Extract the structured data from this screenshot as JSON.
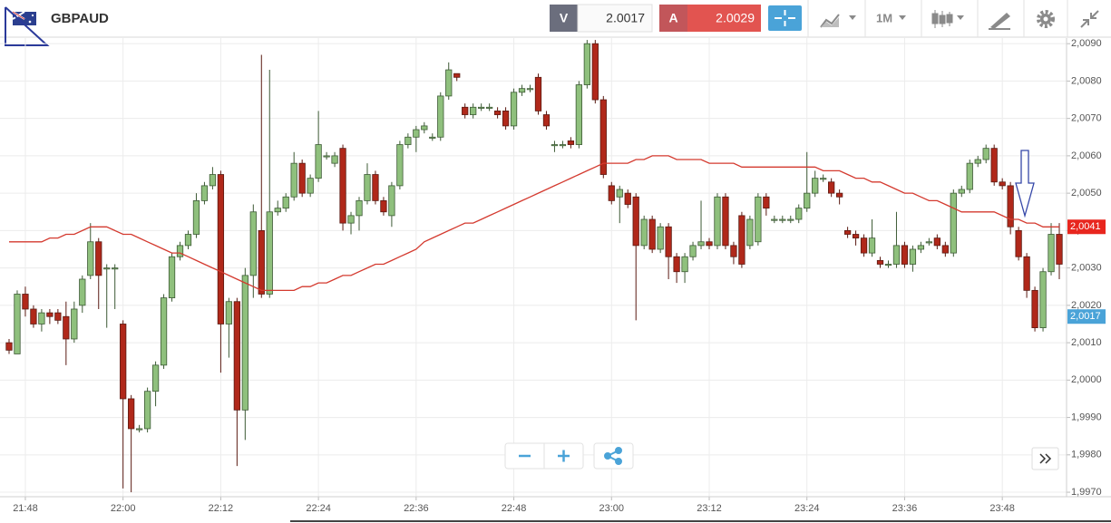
{
  "toolbar": {
    "symbol": "GBPAUD",
    "sell_label": "V",
    "sell_price": "2.0017",
    "buy_label": "A",
    "buy_price": "2.0029",
    "timeframe": "1M"
  },
  "chart_data": {
    "type": "candlestick",
    "up_color": "#8fc07d",
    "down_color": "#b0281a",
    "grid": true,
    "categories": [
      null,
      null,
      "21:48",
      null,
      null,
      null,
      null,
      null,
      null,
      null,
      null,
      null,
      null,
      null,
      "22:00",
      null,
      null,
      null,
      null,
      null,
      null,
      null,
      null,
      null,
      null,
      null,
      "22:12",
      null,
      null,
      null,
      null,
      null,
      null,
      null,
      null,
      null,
      null,
      null,
      "22:24",
      null,
      null,
      null,
      null,
      null,
      null,
      null,
      null,
      null,
      null,
      null,
      "22:36",
      null,
      null,
      null,
      null,
      null,
      null,
      null,
      null,
      null,
      null,
      null,
      "22:48",
      null,
      null,
      null,
      null,
      null,
      null,
      null,
      null,
      null,
      null,
      null,
      "23:00",
      null,
      null,
      null,
      null,
      null,
      null,
      null,
      null,
      null,
      null,
      null,
      "23:12",
      null,
      null,
      null,
      null,
      null,
      null,
      null,
      null,
      null,
      null,
      null,
      "23:24",
      null,
      null,
      null,
      null,
      null,
      null,
      null,
      null,
      null,
      null,
      null,
      "23:36",
      null,
      null,
      null,
      null,
      null,
      null,
      null,
      null,
      null,
      null,
      null,
      "23:48",
      null,
      null,
      null,
      null,
      null,
      null,
      null
    ],
    "open": [
      2.001,
      2.0007,
      2.0023,
      2.0019,
      2.0015,
      2.0018,
      2.0018,
      2.0017,
      2.0011,
      2.002,
      2.0028,
      2.0037,
      2.003,
      2.003,
      2.0015,
      1.9995,
      1.9987,
      1.9987,
      1.9997,
      2.0004,
      2.0022,
      2.0033,
      2.0036,
      2.0039,
      2.0048,
      2.0052,
      2.0055,
      2.0015,
      2.0021,
      1.9992,
      2.0028,
      2.004,
      2.0023,
      2.0045,
      2.0046,
      2.0049,
      2.0058,
      2.005,
      2.0054,
      2.006,
      2.0058,
      2.0062,
      2.0042,
      2.0044,
      2.0048,
      2.0055,
      2.0048,
      2.0044,
      2.0052,
      2.0063,
      2.0065,
      2.0067,
      2.0065,
      2.0065,
      2.0076,
      2.0082,
      2.0073,
      2.0071,
      2.0073,
      2.0073,
      2.0072,
      2.0072,
      2.0068,
      2.0077,
      2.0078,
      2.0081,
      2.0071,
      2.0063,
      2.0063,
      2.0064,
      2.0063,
      2.0079,
      2.009,
      2.0075,
      2.0052,
      2.0049,
      2.005,
      2.0049,
      2.0036,
      2.0043,
      2.0035,
      2.0041,
      2.0033,
      2.0029,
      2.0033,
      2.0036,
      2.0037,
      2.0036,
      2.0049,
      2.0036,
      2.0044,
      2.0036,
      2.0037,
      2.0049,
      2.0043,
      2.0043,
      2.0043,
      2.0043,
      2.0046,
      2.005,
      2.0054,
      2.0053,
      2.005,
      2.004,
      2.0039,
      2.0038,
      2.0034,
      2.0032,
      2.0031,
      2.0031,
      2.0036,
      2.0031,
      2.0035,
      2.0037,
      2.0038,
      2.0036,
      2.0034,
      2.005,
      2.0051,
      2.0058,
      2.0059,
      2.0062,
      2.0053,
      2.0052,
      2.004,
      2.0033,
      2.0024,
      2.0014,
      2.0029,
      2.0039
    ],
    "high": [
      2.0011,
      2.0024,
      2.0025,
      2.002,
      2.0019,
      2.0019,
      2.0019,
      2.0021,
      2.0021,
      2.0028,
      2.0042,
      2.0038,
      2.0031,
      2.0031,
      2.0016,
      1.9996,
      1.9988,
      1.9998,
      2.0005,
      2.0023,
      2.0034,
      2.0037,
      2.004,
      2.005,
      2.0053,
      2.0057,
      2.0056,
      2.0022,
      2.0022,
      2.003,
      2.0047,
      2.0087,
      2.0083,
      2.0048,
      2.005,
      2.0061,
      2.0059,
      2.0055,
      2.0072,
      2.0061,
      2.0061,
      2.0063,
      2.0045,
      2.0049,
      2.0058,
      2.0056,
      2.0049,
      2.0053,
      2.0064,
      2.0066,
      2.0068,
      2.0069,
      2.0066,
      2.0077,
      2.0085,
      2.0082,
      2.0074,
      2.0074,
      2.0074,
      2.0074,
      2.0073,
      2.0073,
      2.0078,
      2.0079,
      2.0079,
      2.0082,
      2.0072,
      2.0064,
      2.0064,
      2.0065,
      2.008,
      2.0091,
      2.0091,
      2.0076,
      2.0053,
      2.0052,
      2.0051,
      2.005,
      2.0044,
      2.0044,
      2.0042,
      2.0042,
      2.0034,
      2.0034,
      2.0037,
      2.0048,
      2.0038,
      2.005,
      2.005,
      2.0037,
      2.0045,
      2.0044,
      2.005,
      2.005,
      2.0044,
      2.0044,
      2.0044,
      2.0047,
      2.0061,
      2.0056,
      2.0055,
      2.0054,
      2.0051,
      2.0041,
      2.004,
      2.0039,
      2.0043,
      2.0033,
      2.0032,
      2.0045,
      2.0037,
      2.0036,
      2.0037,
      2.0038,
      2.0039,
      2.0037,
      2.0051,
      2.0052,
      2.0059,
      2.006,
      2.0063,
      2.0063,
      2.0054,
      2.0053,
      2.0041,
      2.0034,
      2.0025,
      2.003,
      2.0042,
      2.0042
    ],
    "low": [
      2.0007,
      2.0007,
      2.0017,
      2.0014,
      2.0013,
      2.0015,
      2.0015,
      2.0004,
      2.001,
      2.0018,
      2.0027,
      2.0019,
      2.0014,
      2.0019,
      1.9971,
      1.997,
      1.9986,
      1.9986,
      1.9993,
      2.0003,
      2.0021,
      2.0032,
      2.0035,
      2.0038,
      2.0047,
      2.0051,
      2.0002,
      2.0006,
      1.9977,
      1.9984,
      2.0022,
      2.0022,
      2.0022,
      2.0044,
      2.0045,
      2.0048,
      2.0049,
      2.0049,
      2.0053,
      2.0059,
      2.0057,
      2.004,
      2.0039,
      2.004,
      2.0047,
      2.0047,
      2.0044,
      2.0041,
      2.0051,
      2.0062,
      2.0061,
      2.0066,
      2.0064,
      2.0064,
      2.0075,
      2.008,
      2.007,
      2.007,
      2.0072,
      2.0072,
      2.007,
      2.0067,
      2.0067,
      2.0076,
      2.0077,
      2.0071,
      2.0067,
      2.0061,
      2.0062,
      2.0062,
      2.0062,
      2.0078,
      2.0074,
      2.0054,
      2.0047,
      2.0042,
      2.0046,
      2.0016,
      2.0035,
      2.0034,
      2.0034,
      2.0027,
      2.0026,
      2.0026,
      2.0032,
      2.0035,
      2.0035,
      2.0035,
      2.0035,
      2.0031,
      2.003,
      2.0035,
      2.0036,
      2.0044,
      2.0042,
      2.0042,
      2.0042,
      2.0042,
      2.0045,
      2.0049,
      2.0053,
      2.0049,
      2.0047,
      2.0038,
      2.0036,
      2.0033,
      2.0033,
      2.003,
      2.003,
      2.003,
      2.003,
      2.0029,
      2.0034,
      2.0036,
      2.0035,
      2.0033,
      2.0033,
      2.0049,
      2.005,
      2.0057,
      2.0058,
      2.0052,
      2.0051,
      2.0039,
      2.0032,
      2.0022,
      2.0013,
      2.0013,
      2.0028,
      2.0027
    ],
    "close": [
      2.0008,
      2.0023,
      2.0019,
      2.0015,
      2.0018,
      2.0017,
      2.0016,
      2.0011,
      2.0019,
      2.0027,
      2.0037,
      2.0028,
      2.003,
      2.003,
      1.9995,
      1.9987,
      1.9987,
      1.9997,
      2.0004,
      2.0022,
      2.0033,
      2.0036,
      2.0039,
      2.0048,
      2.0052,
      2.0055,
      2.0015,
      2.0021,
      1.9992,
      2.0028,
      2.0045,
      2.0023,
      2.0045,
      2.0046,
      2.0049,
      2.0058,
      2.005,
      2.0054,
      2.0063,
      2.006,
      2.006,
      2.0042,
      2.0044,
      2.0048,
      2.0055,
      2.0048,
      2.0045,
      2.0052,
      2.0063,
      2.0065,
      2.0067,
      2.0068,
      2.0065,
      2.0076,
      2.0083,
      2.0081,
      2.0071,
      2.0073,
      2.0073,
      2.0073,
      2.0071,
      2.0068,
      2.0077,
      2.0078,
      2.0078,
      2.0072,
      2.0068,
      2.0063,
      2.0063,
      2.0063,
      2.0079,
      2.009,
      2.0075,
      2.0055,
      2.0048,
      2.0051,
      2.0047,
      2.0036,
      2.0043,
      2.0035,
      2.0041,
      2.0033,
      2.0029,
      2.0033,
      2.0036,
      2.0037,
      2.0036,
      2.0049,
      2.0036,
      2.0033,
      2.0031,
      2.0043,
      2.0049,
      2.0046,
      2.0043,
      2.0043,
      2.0043,
      2.0046,
      2.005,
      2.0054,
      2.0054,
      2.005,
      2.0049,
      2.0039,
      2.0038,
      2.0034,
      2.0038,
      2.0031,
      2.0031,
      2.0036,
      2.0031,
      2.0035,
      2.0036,
      2.0037,
      2.0036,
      2.0034,
      2.005,
      2.0051,
      2.0058,
      2.0059,
      2.0062,
      2.0053,
      2.0052,
      2.0041,
      2.0033,
      2.0024,
      2.0014,
      2.0029,
      2.0039,
      2.0031
    ],
    "series": [
      {
        "color": "#d43a2f",
        "values": [
          2.0037,
          2.0037,
          2.0037,
          2.0037,
          2.0037,
          2.0038,
          2.0038,
          2.0039,
          2.0039,
          2.004,
          2.0041,
          2.0041,
          2.0041,
          2.004,
          2.0039,
          2.0039,
          2.0038,
          2.0037,
          2.0036,
          2.0035,
          2.0034,
          2.0034,
          2.0033,
          2.0032,
          2.0031,
          2.003,
          2.0029,
          2.0028,
          2.0027,
          2.0026,
          2.0025,
          2.0024,
          2.0024,
          2.0024,
          2.0024,
          2.0024,
          2.0025,
          2.0025,
          2.0026,
          2.0026,
          2.0027,
          2.0028,
          2.0028,
          2.0029,
          2.003,
          2.0031,
          2.0031,
          2.0032,
          2.0033,
          2.0034,
          2.0035,
          2.0037,
          2.0038,
          2.0039,
          2.004,
          2.0041,
          2.0042,
          2.0042,
          2.0043,
          2.0044,
          2.0045,
          2.0046,
          2.0047,
          2.0048,
          2.0049,
          2.005,
          2.0051,
          2.0052,
          2.0053,
          2.0054,
          2.0055,
          2.0056,
          2.0057,
          2.0058,
          2.0058,
          2.0058,
          2.0058,
          2.0059,
          2.0059,
          2.006,
          2.006,
          2.006,
          2.0059,
          2.0059,
          2.0059,
          2.0059,
          2.0058,
          2.0058,
          2.0058,
          2.0058,
          2.0057,
          2.0057,
          2.0057,
          2.0057,
          2.0057,
          2.0057,
          2.0057,
          2.0057,
          2.0057,
          2.0057,
          2.0056,
          2.0056,
          2.0056,
          2.0055,
          2.0054,
          2.0054,
          2.0053,
          2.0053,
          2.0052,
          2.0051,
          2.005,
          2.005,
          2.0049,
          2.0048,
          2.0048,
          2.0047,
          2.0046,
          2.0045,
          2.0045,
          2.0045,
          2.0045,
          2.0045,
          2.0044,
          2.0043,
          2.0043,
          2.0042,
          2.0042,
          2.0041,
          2.0041,
          2.0041
        ]
      }
    ],
    "price_labels": [
      {
        "value": 2.0041,
        "label": "2,0041",
        "color": "#e8261e"
      },
      {
        "value": 2.0017,
        "label": "2,0017",
        "color": "#4aa3d8"
      }
    ],
    "ylim": [
      1.99688,
      2.00915
    ],
    "yticks": [
      {
        "value": 1.997,
        "label": "1,9970"
      },
      {
        "value": 1.998,
        "label": "1,9980"
      },
      {
        "value": 1.999,
        "label": "1,9990"
      },
      {
        "value": 2.0,
        "label": "2,0000"
      },
      {
        "value": 2.001,
        "label": "2,0010"
      },
      {
        "value": 2.002,
        "label": "2,0020"
      },
      {
        "value": 2.003,
        "label": "2,0030"
      },
      {
        "value": 2.004,
        "label": "2,0040"
      },
      {
        "value": 2.005,
        "label": "2,0050"
      },
      {
        "value": 2.006,
        "label": "2,0060"
      },
      {
        "value": 2.007,
        "label": "2,0070"
      },
      {
        "value": 2.008,
        "label": "2,0080"
      },
      {
        "value": 2.009,
        "label": "2,0090"
      }
    ]
  }
}
